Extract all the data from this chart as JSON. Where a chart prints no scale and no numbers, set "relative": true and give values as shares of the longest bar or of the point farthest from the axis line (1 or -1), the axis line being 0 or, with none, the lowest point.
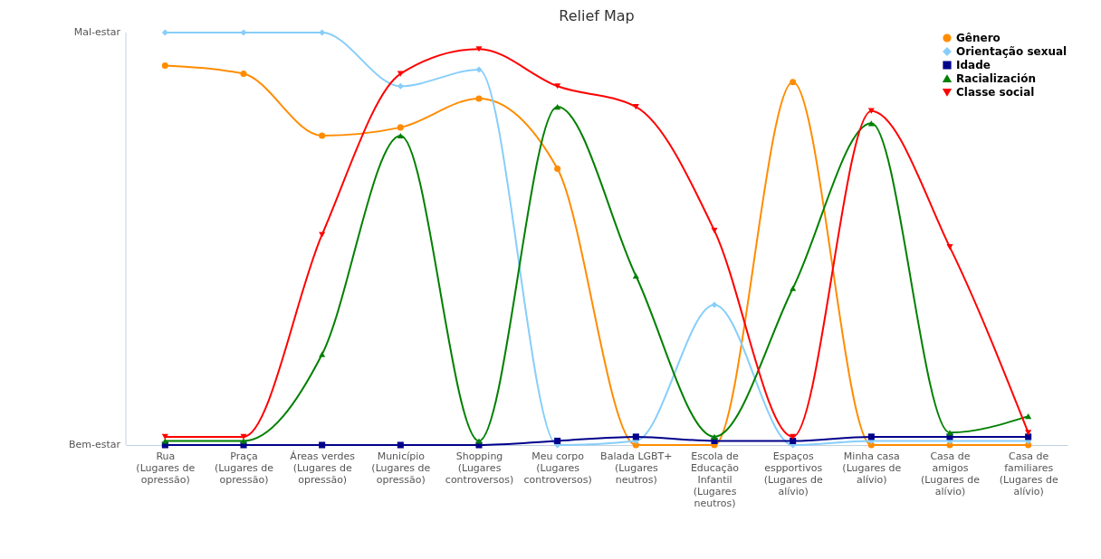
{
  "chart_data": {
    "type": "line",
    "title": "Relief Map",
    "categories": [
      "Rua\n(Lugares de\nopressão)",
      "Praça\n(Lugares de\nopressão)",
      "Áreas verdes\n(Lugares de\nopressão)",
      "Município\n(Lugares de\nopressão)",
      "Shopping\n(Lugares\ncontroversos)",
      "Meu corpo\n(Lugares\ncontroversos)",
      "Balada LGBT+\n(Lugares\nneutros)",
      "Escola de\nEducação\nInfantil\n(Lugares\nneutros)",
      "Espaços\nespportivos\n(Lugares de\nalívio)",
      "Minha casa\n(Lugares de\nalívio)",
      "Casa de\namigos\n(Lugares de\nalívio)",
      "Casa de\nfamiliares\n(Lugares de\nalívio)"
    ],
    "relative": true,
    "annotations": [
      "Bem-estar",
      "Mal-estar"
    ],
    "legend": "top right",
    "series": [
      {
        "name": "Gênero",
        "color": "#ff8c00",
        "marker": "circle",
        "values": [
          0.92,
          0.9,
          0.75,
          0.77,
          0.84,
          0.67,
          0,
          0,
          0.88,
          0,
          0,
          0
        ]
      },
      {
        "name": "Orientação sexual",
        "color": "#87cefa",
        "marker": "diamond",
        "values": [
          1,
          1,
          1,
          0.87,
          0.91,
          0,
          0.01,
          0.34,
          0,
          0.01,
          0.01,
          0.01
        ]
      },
      {
        "name": "Idade",
        "color": "#00008b",
        "marker": "square",
        "values": [
          0,
          0,
          0,
          0,
          0,
          0.01,
          0.02,
          0.01,
          0.01,
          0.02,
          0.02,
          0.02
        ]
      },
      {
        "name": "Racialización",
        "color": "#008000",
        "marker": "triangle",
        "values": [
          0.01,
          0.01,
          0.22,
          0.75,
          0.01,
          0.82,
          0.41,
          0.02,
          0.38,
          0.78,
          0.03,
          0.07
        ]
      },
      {
        "name": "Classe social",
        "color": "#ff0000",
        "marker": "triangle-down",
        "values": [
          0.02,
          0.02,
          0.51,
          0.9,
          0.96,
          0.87,
          0.82,
          0.52,
          0.02,
          0.81,
          0.48,
          0.03
        ]
      }
    ]
  }
}
